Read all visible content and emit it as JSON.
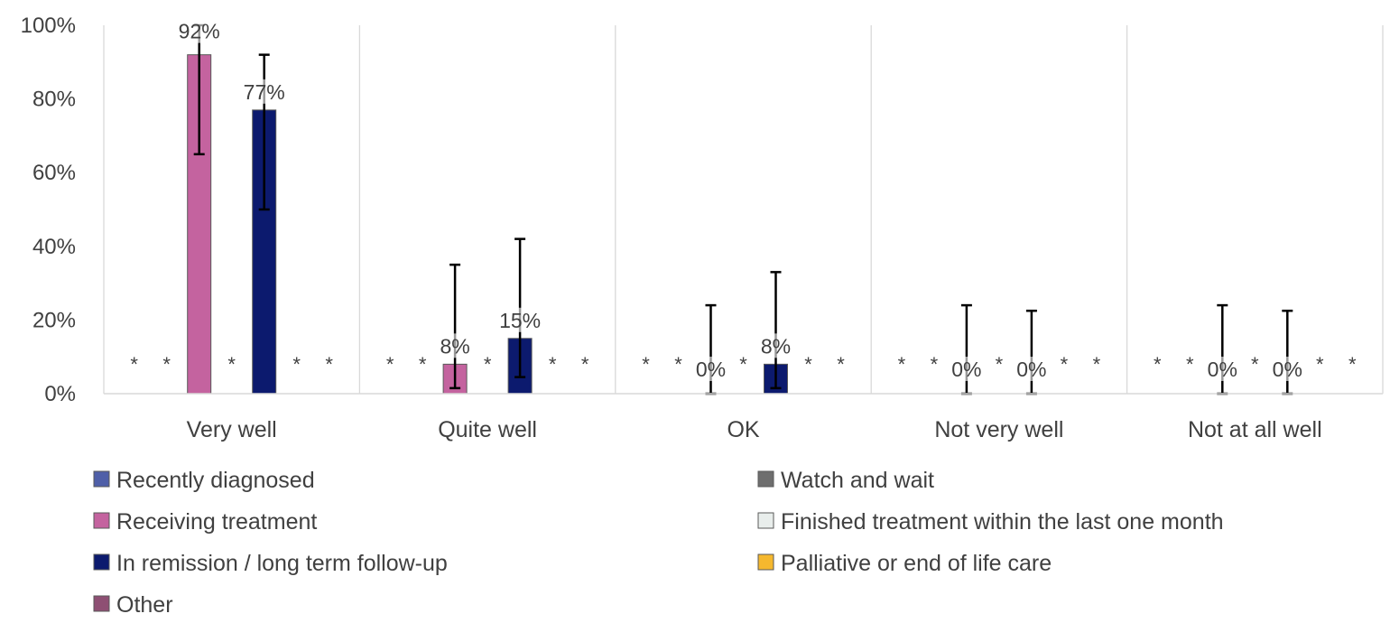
{
  "chart_data": {
    "type": "bar",
    "categories": [
      "Very well",
      "Quite well",
      "OK",
      "Not very well",
      "Not at all well"
    ],
    "ylim": [
      0,
      100
    ],
    "yticks": [
      0,
      20,
      40,
      60,
      80,
      100
    ],
    "ytick_labels": [
      "0%",
      "20%",
      "40%",
      "60%",
      "80%",
      "100%"
    ],
    "grid": "vertical separators between categories",
    "legend_position": "bottom",
    "suppressed_marker": "*",
    "series": [
      {
        "name": "Recently diagnosed",
        "color": "#4F5FA8",
        "values": [
          null,
          null,
          null,
          null,
          null
        ],
        "labels": [
          "*",
          "*",
          "*",
          "*",
          "*"
        ]
      },
      {
        "name": "Watch and wait",
        "color": "#6E6E6E",
        "values": [
          null,
          null,
          null,
          null,
          null
        ],
        "labels": [
          "*",
          "*",
          "*",
          "*",
          "*"
        ]
      },
      {
        "name": "Receiving treatment",
        "color": "#C4639F",
        "values": [
          92,
          8,
          0,
          0,
          0
        ],
        "labels": [
          "92%",
          "8%",
          "0%",
          "0%",
          "0%"
        ],
        "error_low": [
          65,
          1.5,
          0,
          0,
          0
        ],
        "error_high": [
          100,
          35,
          24,
          24,
          24
        ]
      },
      {
        "name": "Finished treatment within the last one month",
        "color": "#E9EEEC",
        "values": [
          null,
          null,
          null,
          null,
          null
        ],
        "labels": [
          "*",
          "*",
          "*",
          "*",
          "*"
        ]
      },
      {
        "name": "In remission / long term follow-up",
        "color": "#0C1A6E",
        "values": [
          77,
          15,
          8,
          0,
          0
        ],
        "labels": [
          "77%",
          "15%",
          "8%",
          "0%",
          "0%"
        ],
        "error_low": [
          50,
          4.5,
          1.5,
          0,
          0
        ],
        "error_high": [
          92,
          42,
          33,
          22.5,
          22.5
        ]
      },
      {
        "name": "Palliative or end of life care",
        "color": "#F5B82E",
        "values": [
          null,
          null,
          null,
          null,
          null
        ],
        "labels": [
          "*",
          "*",
          "*",
          "*",
          "*"
        ]
      },
      {
        "name": "Other",
        "color": "#8E4F73",
        "values": [
          null,
          null,
          null,
          null,
          null
        ],
        "labels": [
          "*",
          "*",
          "*",
          "*",
          "*"
        ]
      }
    ]
  }
}
